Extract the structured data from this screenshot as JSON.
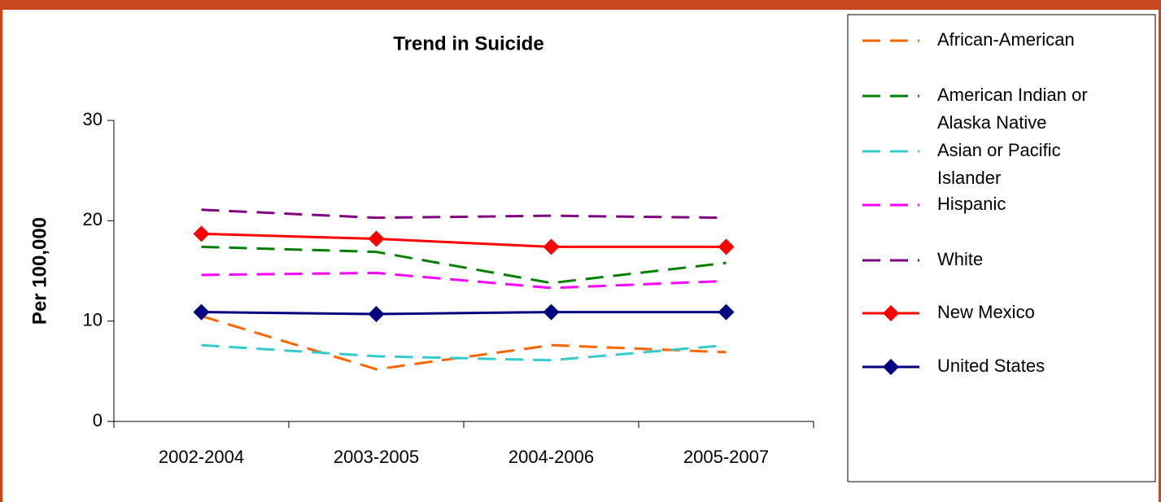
{
  "chart_data": {
    "type": "line",
    "title": "Trend in Suicide",
    "y_label": "Per 100,000",
    "categories": [
      "2002-2004",
      "2003-2005",
      "2004-2006",
      "2005-2007"
    ],
    "ylim": [
      0,
      30
    ],
    "yticks": [
      0,
      10,
      20,
      30
    ],
    "series": [
      {
        "name": "African-American",
        "color": "#ff6600",
        "dashed": true,
        "values": [
          10.5,
          5.2,
          7.6,
          6.9
        ]
      },
      {
        "name": "American Indian or Alaska Native",
        "color": "#008000",
        "dashed": true,
        "values": [
          17.4,
          16.9,
          13.8,
          15.8
        ]
      },
      {
        "name": "Asian or Pacific Islander",
        "color": "#33cccc",
        "dashed": true,
        "values": [
          7.6,
          6.5,
          6.1,
          7.6
        ]
      },
      {
        "name": "Hispanic",
        "color": "#ff00ff",
        "dashed": true,
        "values": [
          14.6,
          14.8,
          13.3,
          14.0
        ]
      },
      {
        "name": "White",
        "color": "#800080",
        "dashed": true,
        "values": [
          21.1,
          20.3,
          20.5,
          20.3
        ]
      },
      {
        "name": "New Mexico",
        "color": "#ff0000",
        "marker": "diamond",
        "values": [
          18.7,
          18.2,
          17.4,
          17.4
        ]
      },
      {
        "name": "United States",
        "color": "#000080",
        "marker": "diamond",
        "values": [
          10.9,
          10.7,
          10.9,
          10.9
        ]
      }
    ]
  }
}
